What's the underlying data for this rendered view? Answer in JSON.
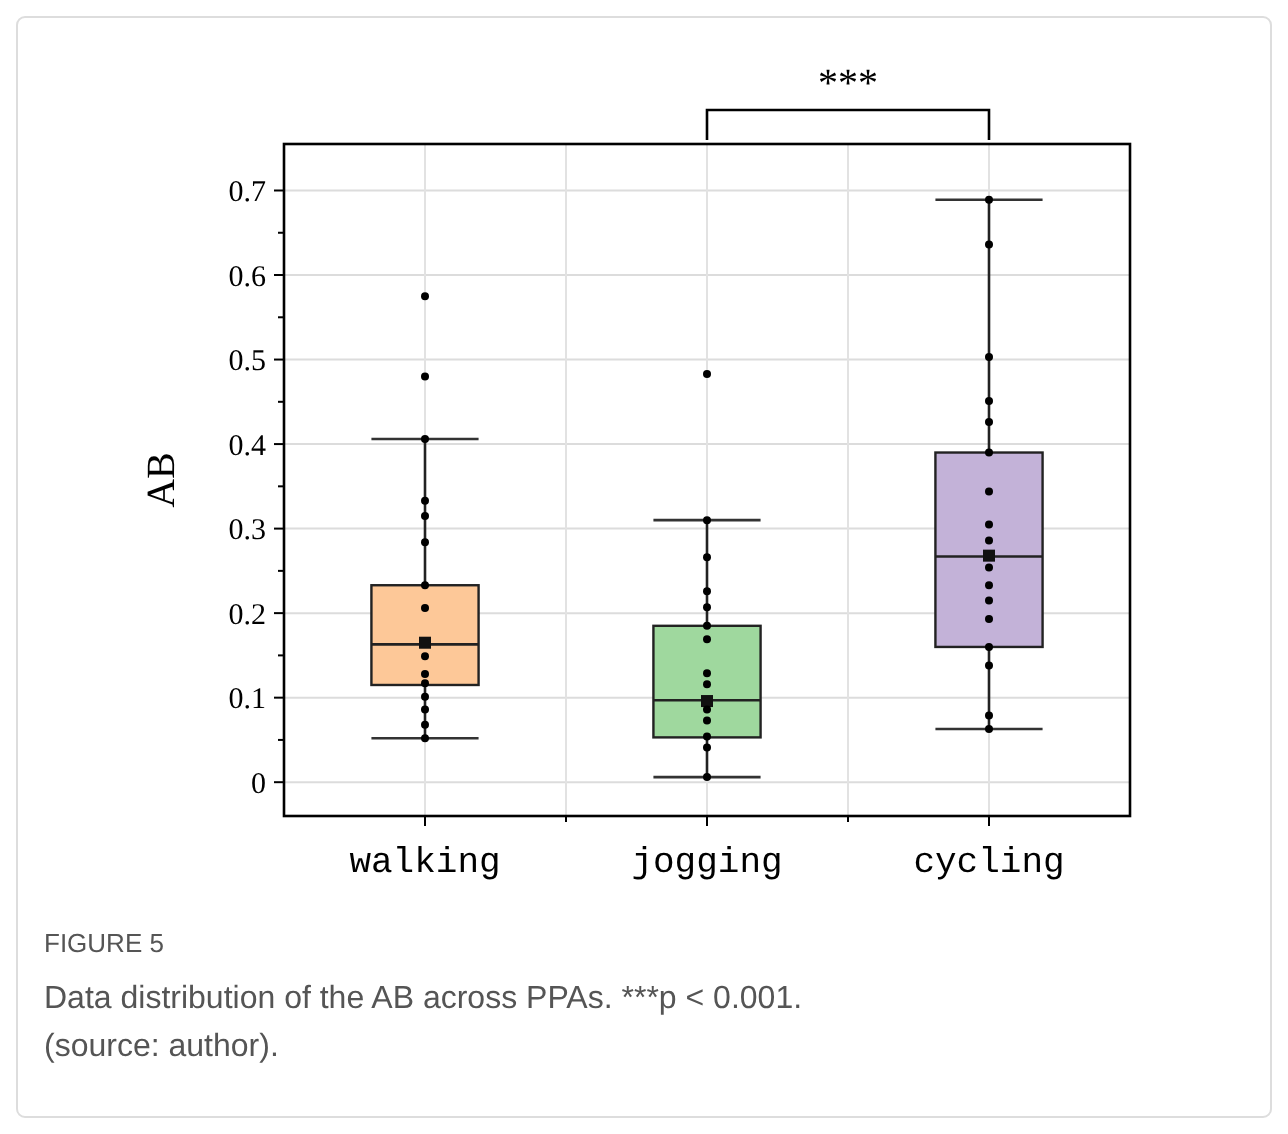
{
  "chart_data": {
    "type": "box",
    "ylabel": "AB",
    "categories": [
      "walking",
      "jogging",
      "cycling"
    ],
    "ylim": [
      -0.04,
      0.755
    ],
    "yticks": [
      0,
      0.1,
      0.2,
      0.3,
      0.4,
      0.5,
      0.6,
      0.7
    ],
    "grid": true,
    "series": [
      {
        "colors": [
          "#fdc898",
          "#9fd89e",
          "#c3b2d8"
        ],
        "boxes": [
          {
            "low": 0.052,
            "q1": 0.115,
            "median": 0.163,
            "q3": 0.233,
            "high": 0.406,
            "mean": 0.165
          },
          {
            "low": 0.006,
            "q1": 0.053,
            "median": 0.097,
            "q3": 0.185,
            "high": 0.31,
            "mean": 0.096
          },
          {
            "low": 0.063,
            "q1": 0.16,
            "median": 0.267,
            "q3": 0.39,
            "high": 0.689,
            "mean": 0.268
          }
        ]
      },
      {
        "type": "scatter",
        "color": "#000000",
        "marker": "circle",
        "x": [
          "walking",
          "walking",
          "walking",
          "walking",
          "walking",
          "walking",
          "walking",
          "walking",
          "walking",
          "walking",
          "walking",
          "walking",
          "walking",
          "walking",
          "walking",
          "jogging",
          "jogging",
          "jogging",
          "jogging",
          "jogging",
          "jogging",
          "jogging",
          "jogging",
          "jogging",
          "jogging",
          "jogging",
          "jogging",
          "jogging",
          "jogging",
          "cycling",
          "cycling",
          "cycling",
          "cycling",
          "cycling",
          "cycling",
          "cycling",
          "cycling",
          "cycling",
          "cycling",
          "cycling",
          "cycling",
          "cycling",
          "cycling",
          "cycling",
          "cycling",
          "cycling"
        ],
        "values": [
          0.575,
          0.48,
          0.406,
          0.333,
          0.315,
          0.284,
          0.233,
          0.206,
          0.149,
          0.128,
          0.117,
          0.101,
          0.086,
          0.068,
          0.052,
          0.483,
          0.31,
          0.266,
          0.226,
          0.207,
          0.185,
          0.169,
          0.129,
          0.116,
          0.086,
          0.073,
          0.054,
          0.041,
          0.006,
          0.689,
          0.636,
          0.503,
          0.451,
          0.426,
          0.39,
          0.344,
          0.305,
          0.286,
          0.254,
          0.233,
          0.215,
          0.193,
          0.16,
          0.138,
          0.079,
          0.063
        ]
      }
    ],
    "annotations": [
      {
        "text": "***"
      },
      "FIGURE 5",
      "Data distribution of the AB across PPAs. ***p < 0.001. (source: author)."
    ]
  }
}
